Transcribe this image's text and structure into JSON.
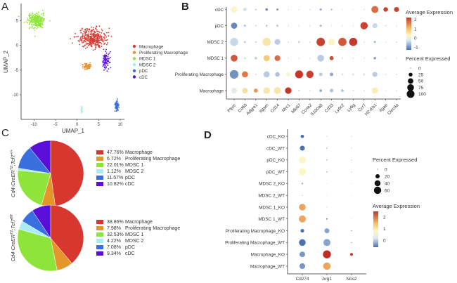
{
  "panels": {
    "a": "A",
    "b": "B",
    "c": "C",
    "d": "D"
  },
  "chart_data": [
    {
      "id": "A",
      "type": "scatter",
      "title": "",
      "xlabel": "UMAP_1",
      "ylabel": "UMAP_2",
      "xlim": [
        -13,
        11
      ],
      "ylim": [
        -15,
        8.5
      ],
      "xticks": [
        -10,
        -5,
        0,
        5,
        10
      ],
      "yticks": [
        -10,
        -5,
        0,
        5
      ],
      "grid": false,
      "legend_position": "right",
      "legend": [
        {
          "name": "Macrophage",
          "color": "#d7372e"
        },
        {
          "name": "Proliferating Macrophage",
          "color": "#e5962b"
        },
        {
          "name": "MDSC 1",
          "color": "#8fe43b"
        },
        {
          "name": "MDSC 2",
          "color": "#a9ecf4"
        },
        {
          "name": "pDC",
          "color": "#3a6fe0"
        },
        {
          "name": "cDC",
          "color": "#5a0fd8"
        }
      ],
      "clusters": [
        {
          "name": "MDSC 1",
          "center": [
            -9.5,
            5
          ],
          "spread": [
            1.6,
            1.2
          ],
          "n": 260
        },
        {
          "name": "Macrophage",
          "center": [
            3.5,
            1.5
          ],
          "spread": [
            2.6,
            1.6
          ],
          "n": 340
        },
        {
          "name": "Proliferating Macrophage",
          "center": [
            2.4,
            -4.2
          ],
          "spread": [
            0.7,
            0.6
          ],
          "n": 70
        },
        {
          "name": "cDC",
          "center": [
            6.7,
            -2.9
          ],
          "spread": [
            0.7,
            1.4
          ],
          "n": 90
        },
        {
          "name": "pDC",
          "center": [
            9.2,
            -12.3
          ],
          "spread": [
            0.3,
            0.9
          ],
          "n": 80
        },
        {
          "name": "MDSC 2",
          "center": [
            1.1,
            -13.2
          ],
          "spread": [
            0.15,
            0.6
          ],
          "n": 25
        }
      ]
    },
    {
      "id": "B",
      "type": "dotplot",
      "x": [
        "Ptprc",
        "Cd68",
        "Adgre1",
        "Itgam",
        "Cd14",
        "Mrc1",
        "Mki67",
        "Ccna2",
        "S100a8",
        "Cd33",
        "Ly6c2",
        "Ly6g",
        "Ccr7",
        "H2-Eb1",
        "Itgae",
        "Clec9a"
      ],
      "y": [
        "Macrophage",
        "Proliferating Macrophage",
        "MDSC 1",
        "MDSC 2",
        "pDC",
        "cDC"
      ],
      "color_legend": {
        "title": "Average Expression",
        "ticks": [
          2,
          1,
          0,
          -1
        ],
        "range": [
          -1.3,
          2.2
        ]
      },
      "size_legend": {
        "title": "Percent Expressed",
        "ticks": [
          0,
          25,
          50,
          75,
          100
        ],
        "max": 100
      },
      "values": {
        "cDC": {
          "pct": [
            45,
            15,
            3,
            8,
            6,
            2,
            2,
            2,
            5,
            3,
            3,
            2,
            3,
            60,
            25,
            30
          ],
          "avg": [
            0.3,
            -0.3,
            -0.5,
            -1.0,
            -0.8,
            -0.3,
            -0.3,
            -0.3,
            -0.8,
            -0.7,
            0.1,
            -0.2,
            -0.2,
            1.6,
            2.0,
            2.0
          ]
        },
        "pDC": {
          "pct": [
            45,
            5,
            2,
            4,
            4,
            2,
            2,
            2,
            5,
            2,
            2,
            2,
            65,
            30,
            3,
            2
          ],
          "avg": [
            -1.1,
            -0.6,
            -0.5,
            -0.6,
            -0.6,
            -0.3,
            -0.3,
            -0.3,
            -0.7,
            -0.3,
            -0.3,
            -0.3,
            2.0,
            -0.4,
            -0.3,
            -0.3
          ]
        },
        "MDSC 2": {
          "pct": [
            80,
            5,
            3,
            80,
            40,
            2,
            5,
            2,
            85,
            50,
            80,
            80,
            2,
            5,
            2,
            2
          ],
          "avg": [
            -0.4,
            -0.5,
            -0.4,
            0.5,
            -0.5,
            -0.3,
            -0.4,
            -0.3,
            2.0,
            0.3,
            1.8,
            2.1,
            -0.3,
            -0.7,
            -0.3,
            -0.3
          ]
        },
        "MDSC 1": {
          "pct": [
            55,
            4,
            8,
            45,
            40,
            2,
            2,
            2,
            55,
            20,
            3,
            3,
            2,
            8,
            2,
            2
          ],
          "avg": [
            1.8,
            -0.4,
            -0.5,
            0.9,
            1.6,
            -0.3,
            -0.3,
            -0.3,
            -0.5,
            1.9,
            -0.3,
            -0.3,
            -0.3,
            -0.9,
            -0.3,
            -0.3
          ]
        },
        "Proliferating Macrophage": {
          "pct": [
            90,
            45,
            3,
            45,
            25,
            25,
            75,
            65,
            15,
            15,
            5,
            5,
            5,
            30,
            2,
            2
          ],
          "avg": [
            -1.0,
            1.5,
            -0.3,
            -0.5,
            -0.6,
            0.2,
            2.1,
            2.0,
            -0.5,
            -0.8,
            -0.3,
            -0.3,
            -0.3,
            -0.5,
            -0.3,
            -0.3
          ]
        },
        "Macrophage": {
          "pct": [
            40,
            35,
            20,
            50,
            55,
            50,
            4,
            2,
            8,
            15,
            8,
            3,
            2,
            45,
            2,
            2
          ],
          "avg": [
            -0.1,
            0.6,
            1.3,
            0.5,
            0.5,
            2.1,
            -0.3,
            -0.3,
            -0.8,
            -0.6,
            -0.6,
            -0.3,
            -0.3,
            0.4,
            -0.3,
            -0.3
          ]
        }
      }
    },
    {
      "id": "C",
      "type": "pie",
      "pies": [
        {
          "label": "Cd4-CreERT2;Tcf7+/+",
          "label_main": "Cd4-CreER",
          "label_sup1": "T2",
          "label_mid": ";Tcf7",
          "label_sup2": "+/+",
          "slices": [
            {
              "name": "Macrophage",
              "value": 47.76,
              "text": "47.76%",
              "color": "#d7372e"
            },
            {
              "name": "Proliferating Macrophage",
              "value": 6.72,
              "text": "6.72%",
              "color": "#e5962b"
            },
            {
              "name": "MDSC 1",
              "value": 22.01,
              "text": "22.01%",
              "color": "#8fe43b"
            },
            {
              "name": "MDSC 2",
              "value": 1.12,
              "text": "1.12%",
              "color": "#a9ecf4"
            },
            {
              "name": "pDC",
              "value": 11.57,
              "text": "11.57%",
              "color": "#3a6fe0"
            },
            {
              "name": "cDC",
              "value": 10.82,
              "text": "10.82%",
              "color": "#5a0fd8"
            }
          ]
        },
        {
          "label": "Cd4-CreERT2;Tcf7fl/fl",
          "label_main": "Cd4-CreER",
          "label_sup1": "T2",
          "label_mid": ";Tcf7",
          "label_sup2": "fl/fl",
          "slices": [
            {
              "name": "Macrophage",
              "value": 38.86,
              "text": "38.86%",
              "color": "#d7372e"
            },
            {
              "name": "Proliferating Macrophage",
              "value": 7.98,
              "text": "7.98%",
              "color": "#e5962b"
            },
            {
              "name": "MDSC 1",
              "value": 32.53,
              "text": "32.53%",
              "color": "#8fe43b"
            },
            {
              "name": "MDSC 2",
              "value": 4.22,
              "text": "4.22%",
              "color": "#a9ecf4"
            },
            {
              "name": "pDC",
              "value": 7.08,
              "text": "7.08%",
              "color": "#3a6fe0"
            },
            {
              "name": "cDC",
              "value": 9.34,
              "text": "9.34%",
              "color": "#5a0fd8"
            }
          ]
        }
      ]
    },
    {
      "id": "D",
      "type": "dotplot",
      "x": [
        "Cd274",
        "Arg1",
        "Nos2"
      ],
      "y": [
        "Macrophage_WT",
        "Macrophage_KO",
        "Proliferating Macrophage_WT",
        "Proliferating Macrophage_KO",
        "MDSC 1_WT",
        "MDSC 1_KO",
        "MDSC 2_WT",
        "MDSC 2_KO",
        "pDC_WT",
        "pDC_KO",
        "cDC_WT",
        "cDC_KO"
      ],
      "color_legend": {
        "title": "Average Expression",
        "ticks": [
          2,
          1,
          0
        ],
        "range": [
          -0.6,
          2.5
        ]
      },
      "size_legend": {
        "title": "Percent Expressed",
        "ticks": [
          0,
          20,
          40,
          60
        ],
        "max": 60
      },
      "values": {
        "Macrophage_WT": {
          "pct": [
            30,
            50,
            1
          ],
          "avg": [
            -0.3,
            1.6,
            0.8
          ]
        },
        "Macrophage_KO": {
          "pct": [
            28,
            58,
            8
          ],
          "avg": [
            -0.3,
            2.5,
            2.3
          ]
        },
        "Proliferating Macrophage_WT": {
          "pct": [
            40,
            45,
            1
          ],
          "avg": [
            -0.6,
            -0.2,
            -0.2
          ]
        },
        "Proliferating Macrophage_KO": {
          "pct": [
            12,
            22,
            1
          ],
          "avg": [
            -0.6,
            -0.2,
            -0.2
          ]
        },
        "MDSC 1_WT": {
          "pct": [
            45,
            2,
            1
          ],
          "avg": [
            1.6,
            -0.4,
            0.5
          ]
        },
        "MDSC 1_KO": {
          "pct": [
            40,
            1,
            0
          ],
          "avg": [
            1.6,
            0.2,
            0.5
          ]
        },
        "MDSC 2_WT": {
          "pct": [
            1,
            0,
            0
          ],
          "avg": [
            0.2,
            0.2,
            0.2
          ]
        },
        "MDSC 2_KO": {
          "pct": [
            2,
            0,
            0
          ],
          "avg": [
            -0.3,
            0.2,
            0.2
          ]
        },
        "pDC_WT": {
          "pct": [
            48,
            1,
            1
          ],
          "avg": [
            0.8,
            -0.2,
            0.2
          ]
        },
        "pDC_KO": {
          "pct": [
            42,
            1,
            1
          ],
          "avg": [
            0.8,
            -0.2,
            0.2
          ]
        },
        "cDC_WT": {
          "pct": [
            22,
            1,
            1
          ],
          "avg": [
            -0.6,
            -0.3,
            0.2
          ]
        },
        "cDC_KO": {
          "pct": [
            10,
            1,
            1
          ],
          "avg": [
            -0.6,
            0.2,
            0.2
          ]
        }
      }
    }
  ]
}
